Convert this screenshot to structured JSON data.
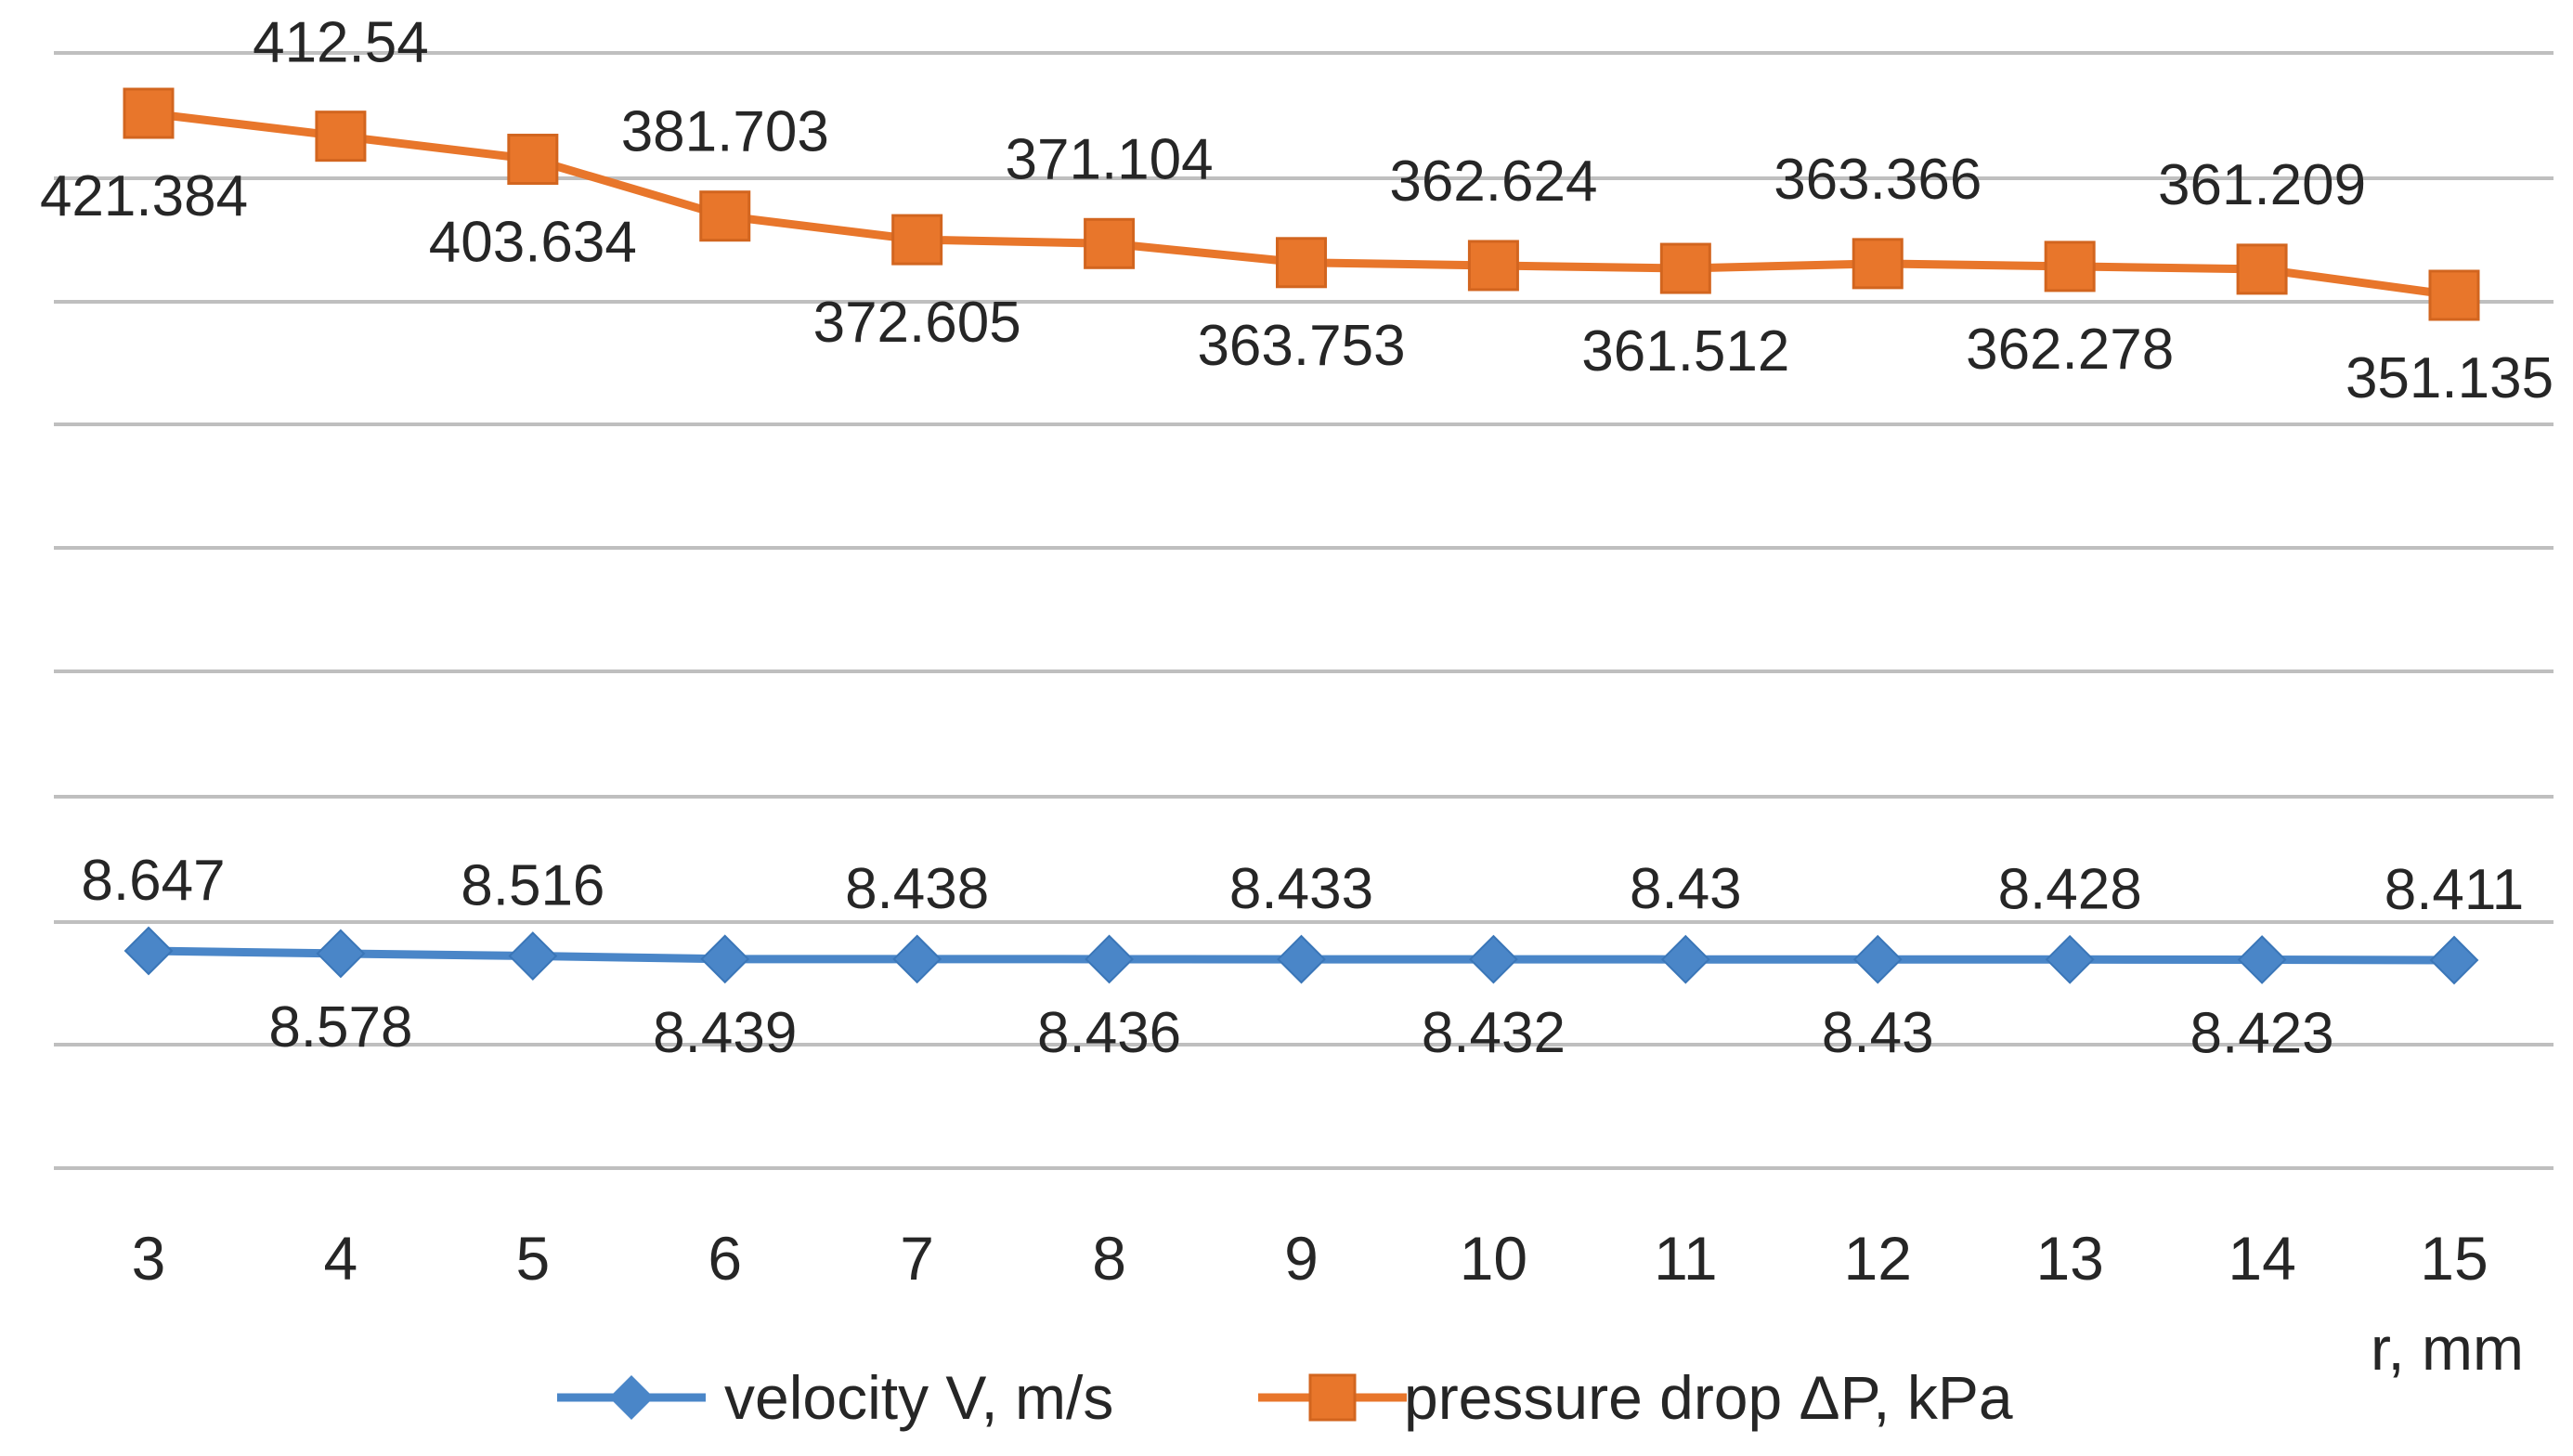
{
  "chart_data": {
    "type": "line",
    "title": "",
    "xlabel": "r, mm",
    "ylabel": "",
    "categories": [
      "3",
      "4",
      "5",
      "6",
      "7",
      "8",
      "9",
      "10",
      "11",
      "12",
      "13",
      "14",
      "15"
    ],
    "grid": true,
    "legend_position": "bottom",
    "series": [
      {
        "name": "velocity V, m/s",
        "color": "#4a86c8",
        "marker": "diamond",
        "values": [
          8.647,
          8.578,
          8.516,
          8.439,
          8.438,
          8.436,
          8.433,
          8.432,
          8.43,
          8.43,
          8.428,
          8.423,
          8.411
        ],
        "labels": [
          "8.647",
          "8.578",
          "8.516",
          "8.439",
          "8.438",
          "8.436",
          "8.433",
          "8.432",
          "8.43",
          "8.43",
          "8.428",
          "8.423",
          "8.411"
        ],
        "label_positions": [
          "above",
          "below",
          "above",
          "below",
          "above",
          "below",
          "above",
          "below",
          "above",
          "below",
          "above",
          "below",
          "above"
        ]
      },
      {
        "name": "pressure drop ΔP, kPa",
        "color": "#e8762b",
        "marker": "square",
        "values": [
          421.384,
          412.54,
          403.634,
          381.703,
          372.605,
          371.104,
          363.753,
          362.624,
          361.512,
          363.366,
          362.278,
          361.209,
          351.135
        ],
        "labels": [
          "421.384",
          "412.54",
          "403.634",
          "381.703",
          "372.605",
          "371.104",
          "363.753",
          "362.624",
          "361.512",
          "363.366",
          "362.278",
          "361.209",
          "351.135"
        ],
        "label_positions": [
          "below",
          "above",
          "below",
          "above",
          "below",
          "above",
          "below",
          "above",
          "below",
          "above",
          "below",
          "above",
          "below"
        ]
      }
    ]
  }
}
